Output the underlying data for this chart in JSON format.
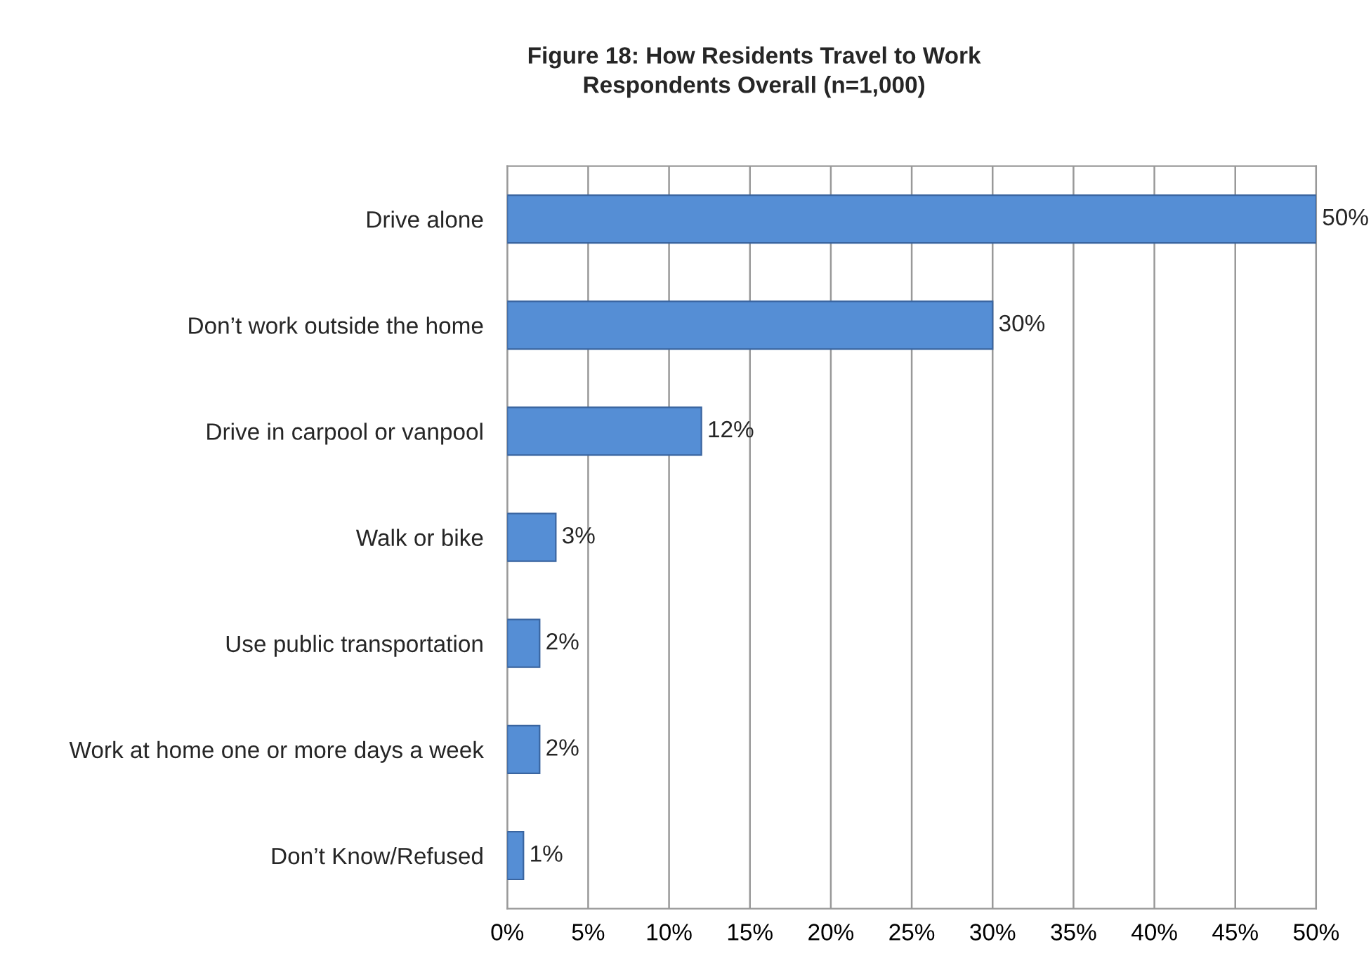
{
  "chart_data": {
    "type": "bar",
    "orientation": "horizontal",
    "title": "Figure 18: How Residents Travel to Work",
    "subtitle": "Respondents Overall (n=1,000)",
    "categories": [
      "Drive alone",
      "Don’t work outside the home",
      "Drive in carpool or vanpool",
      "Walk or bike",
      "Use public transportation",
      "Work at home one or more days a week",
      "Don’t Know/Refused"
    ],
    "values": [
      50,
      30,
      12,
      3,
      2,
      2,
      1
    ],
    "value_labels": [
      "50%",
      "30%",
      "12%",
      "3%",
      "2%",
      "2%",
      "1%"
    ],
    "color": "#558ed5",
    "xlim": [
      0,
      50
    ],
    "xticks": [
      {
        "value": 0,
        "label": "0%"
      },
      {
        "value": 5,
        "label": "5%"
      },
      {
        "value": 10,
        "label": "10%"
      },
      {
        "value": 15,
        "label": "15%"
      },
      {
        "value": 20,
        "label": "20%"
      },
      {
        "value": 25,
        "label": "25%"
      },
      {
        "value": 30,
        "label": "30%"
      },
      {
        "value": 35,
        "label": "35%"
      },
      {
        "value": 40,
        "label": "40%"
      },
      {
        "value": 45,
        "label": "45%"
      },
      {
        "value": 50,
        "label": "50%"
      }
    ],
    "grid": "x",
    "legend": false
  }
}
